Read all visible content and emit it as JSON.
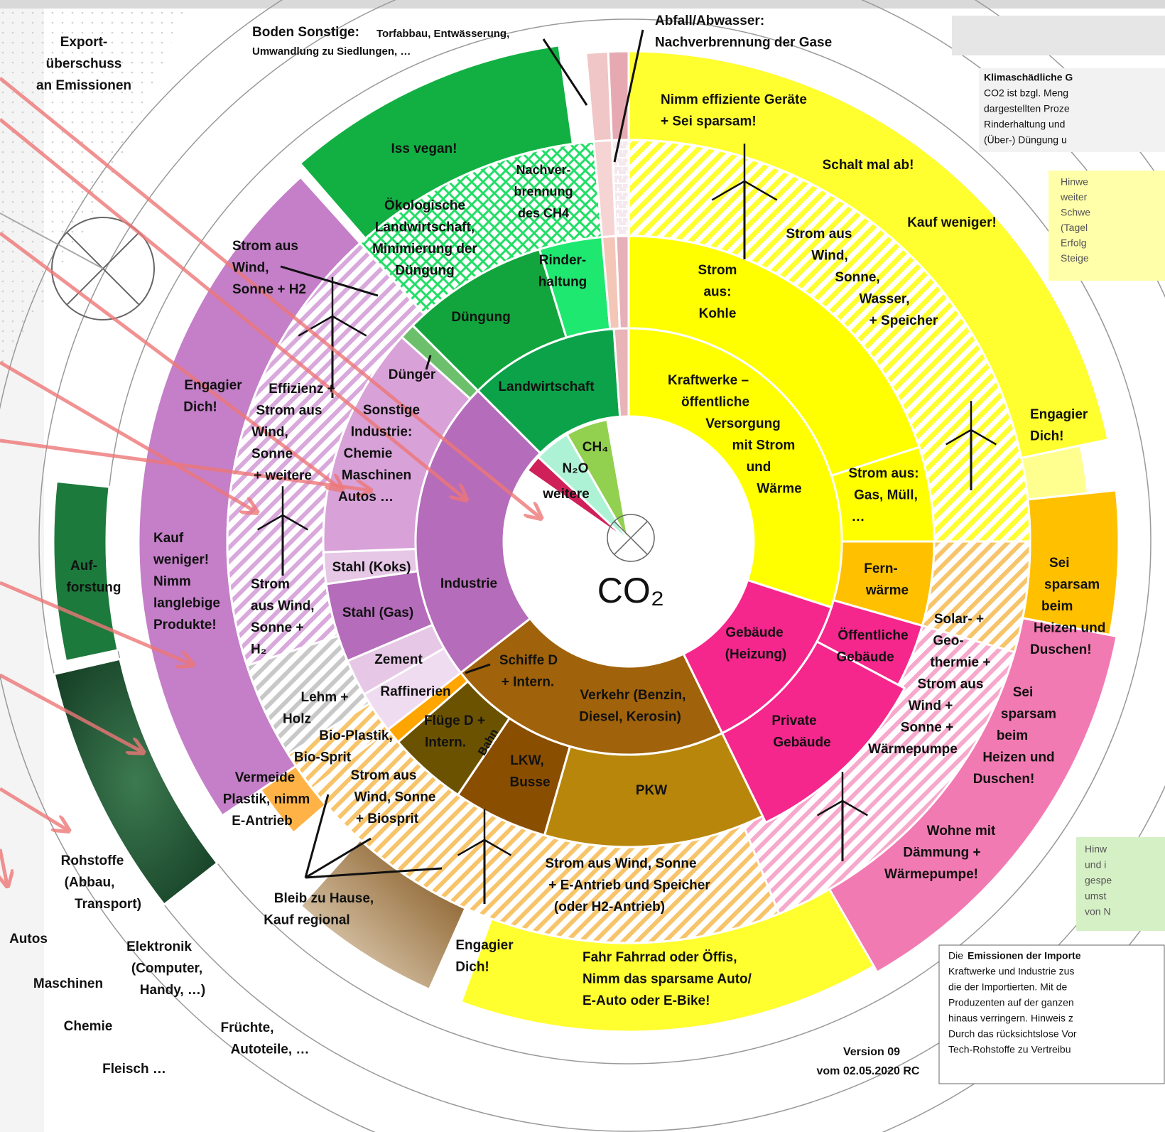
{
  "labels": [
    {
      "lines": [
        "Boden Sonstige:"
      ]
    },
    {
      "lines": [
        "Torfabbau, Entwässerung,"
      ]
    },
    {
      "lines": [
        "Umwandlung zu Siedlungen, …"
      ]
    },
    {
      "lines": [
        "Abfall/Abwasser:",
        "Nachverbrennung der Gase"
      ]
    },
    {
      "lines": [
        "Export-",
        "überschuss",
        "an Emissionen"
      ]
    },
    {
      "lines": [
        "Nimm effiziente Geräte",
        "+ Sei sparsam!"
      ]
    },
    {
      "lines": [
        "Schalt mal ab!"
      ]
    },
    {
      "lines": [
        "Kauf weniger!"
      ]
    },
    {
      "lines": [
        "Iss vegan!"
      ]
    },
    {
      "lines": [
        "Nachver-",
        "brennung",
        "des CH4"
      ]
    },
    {
      "lines": [
        "Ökologische",
        "Landwirtschaft,",
        "Minimierung der",
        "Düngung"
      ]
    },
    {
      "lines": [
        "Rinder-",
        "haltung"
      ]
    },
    {
      "lines": [
        "Düngung"
      ]
    },
    {
      "lines": [
        "Strom aus",
        "Wind,",
        "Sonne + H2"
      ]
    },
    {
      "lines": [
        "Strom aus",
        "Wind,",
        "Sonne,",
        "Wasser,",
        "+ Speicher"
      ]
    },
    {
      "lines": [
        "Strom",
        "aus:",
        "Kohle"
      ]
    },
    {
      "lines": [
        "Dünger"
      ]
    },
    {
      "lines": [
        "Landwirtschaft"
      ]
    },
    {
      "lines": [
        "Engagier",
        "Dich!"
      ]
    },
    {
      "lines": [
        "Effizienz +",
        "Strom aus",
        "Wind,",
        "Sonne",
        "+ weitere"
      ]
    },
    {
      "lines": [
        "Sonstige",
        "Industrie:",
        "Chemie",
        "Maschinen",
        "Autos …"
      ]
    },
    {
      "lines": [
        "Kraftwerke –",
        "öffentliche",
        "Versorgung",
        "mit Strom",
        "und",
        "Wärme"
      ]
    },
    {
      "lines": [
        "Strom aus:",
        "Gas, Müll,",
        "…"
      ]
    },
    {
      "lines": [
        "Engagier",
        "Dich!"
      ]
    },
    {
      "lines": [
        "CH₄"
      ]
    },
    {
      "lines": [
        "N₂O"
      ]
    },
    {
      "lines": [
        "weitere"
      ]
    },
    {
      "lines": [
        "CO₂"
      ]
    },
    {
      "lines": [
        "Industrie"
      ]
    },
    {
      "lines": [
        "Stahl (Koks)"
      ]
    },
    {
      "lines": [
        "Stahl (Gas)"
      ]
    },
    {
      "lines": [
        "Zement"
      ]
    },
    {
      "lines": [
        "Raffinerien"
      ]
    },
    {
      "lines": [
        "Kauf",
        "weniger!",
        "Nimm",
        "langlebige",
        "Produkte!"
      ]
    },
    {
      "lines": [
        "Auf-",
        "forstung"
      ]
    },
    {
      "lines": [
        "Strom",
        "aus Wind,",
        "Sonne +",
        "H₂"
      ]
    },
    {
      "lines": [
        "Fern-",
        "wärme"
      ]
    },
    {
      "lines": [
        "Sei",
        "sparsam",
        "beim",
        "Heizen und",
        "Duschen!"
      ]
    },
    {
      "lines": [
        "Gebäude",
        "(Heizung)"
      ]
    },
    {
      "lines": [
        "Öffentliche",
        "Gebäude"
      ]
    },
    {
      "lines": [
        "Solar- +",
        "Geo-",
        "thermie +",
        "Strom aus",
        "Wind +",
        "Sonne +",
        "Wärmepumpe"
      ]
    },
    {
      "lines": [
        "Sei",
        "sparsam",
        "beim",
        "Heizen und",
        "Duschen!"
      ]
    },
    {
      "lines": [
        "Schiffe D",
        "+ Intern."
      ]
    },
    {
      "lines": [
        "Verkehr (Benzin,",
        "Diesel, Kerosin)"
      ]
    },
    {
      "lines": [
        "Lehm +",
        "Holz"
      ]
    },
    {
      "lines": [
        "Bio-Plastik,",
        "Bio-Sprit"
      ]
    },
    {
      "lines": [
        "Flüge D +",
        "Intern."
      ]
    },
    {
      "lines": [
        "Bahn"
      ]
    },
    {
      "lines": [
        "LKW,",
        "Busse"
      ]
    },
    {
      "lines": [
        "PKW"
      ]
    },
    {
      "lines": [
        "Private",
        "Gebäude"
      ]
    },
    {
      "lines": [
        "Vermeide",
        "Plastik, nimm",
        "E-Antrieb"
      ]
    },
    {
      "lines": [
        "Strom aus",
        "Wind, Sonne",
        "+ Biosprit"
      ]
    },
    {
      "lines": [
        "Wohne mit",
        "Dämmung +",
        "Wärmepumpe!"
      ]
    },
    {
      "lines": [
        "Strom aus Wind, Sonne",
        "+ E-Antrieb und Speicher",
        "(oder H2-Antrieb)"
      ]
    },
    {
      "lines": [
        "Bleib zu Hause,",
        "Kauf regional"
      ]
    },
    {
      "lines": [
        "Rohstoffe",
        "(Abbau,",
        "Transport)"
      ]
    },
    {
      "lines": [
        "Autos"
      ]
    },
    {
      "lines": [
        "Elektronik",
        "(Computer,",
        "Handy, …)"
      ]
    },
    {
      "lines": [
        "Maschinen"
      ]
    },
    {
      "lines": [
        "Chemie"
      ]
    },
    {
      "lines": [
        "Früchte,",
        "Autoteile, …"
      ]
    },
    {
      "lines": [
        "Fleisch …"
      ]
    },
    {
      "lines": [
        "Engagier",
        "Dich!"
      ]
    },
    {
      "lines": [
        "Fahr Fahrrad oder Öffis,",
        "Nimm das sparsame Auto/",
        "E-Auto oder E-Bike!"
      ]
    },
    {
      "lines": [
        "Version 09",
        "vom 02.05.2020 RC"
      ]
    },
    {
      "lines": [
        "Klimaschädliche G"
      ]
    },
    {
      "lines": [
        "CO2 ist bzgl. Meng",
        "dargestellten Proze",
        "Rinderhaltung und",
        "(Über-) Düngung u"
      ]
    },
    {
      "lines": [
        "Hinwe",
        "weiter",
        "Schwe",
        "(Tagel",
        "Erfolg",
        "Steige"
      ]
    },
    {
      "lines": [
        "Hinw",
        "und i",
        "gespe",
        "umst",
        "von N"
      ]
    },
    {
      "lines": [
        "Die"
      ]
    },
    {
      "lines": [
        "Emissionen der Importe"
      ]
    },
    {
      "lines": [
        "Kraftwerke und Industrie zus",
        "die der Importierten. Mit de",
        "Produzenten auf der ganzen",
        "hinaus verringern. Hinweis z",
        "Durch das rücksichtslose Vor",
        "Tech-Rohstoffe zu Vertreibu"
      ]
    }
  ]
}
